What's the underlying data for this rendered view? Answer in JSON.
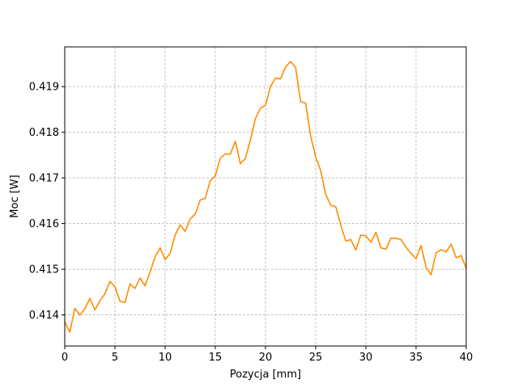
{
  "chart_data": {
    "type": "line",
    "title": "",
    "xlabel": "Pozycja [mm]",
    "ylabel": "Moc [W]",
    "xlim": [
      0,
      40
    ],
    "ylim": [
      0.41332,
      0.41987
    ],
    "xticks": [
      0,
      5,
      10,
      15,
      20,
      25,
      30,
      35,
      40
    ],
    "xtick_labels": [
      "0",
      "5",
      "10",
      "15",
      "20",
      "25",
      "30",
      "35",
      "40"
    ],
    "yticks": [
      0.414,
      0.415,
      0.416,
      0.417,
      0.418,
      0.419
    ],
    "ytick_labels": [
      "0.414",
      "0.415",
      "0.416",
      "0.417",
      "0.418",
      "0.419"
    ],
    "grid": true,
    "colors": {
      "line": "#ff8c00",
      "grid": "#b0b0b0"
    },
    "series": [
      {
        "x": [
          0,
          0.5,
          1,
          1.5,
          2,
          2.5,
          3,
          3.5,
          4,
          4.5,
          5,
          5.5,
          6,
          6.5,
          7,
          7.5,
          8,
          8.5,
          9,
          9.5,
          10,
          10.5,
          11,
          11.5,
          12,
          12.5,
          13,
          13.5,
          14,
          14.5,
          15,
          15.5,
          16,
          16.5,
          17,
          17.5,
          18,
          18.5,
          19,
          19.5,
          20,
          20.5,
          21,
          21.5,
          22,
          22.5,
          23,
          23.5,
          24,
          24.5,
          25,
          25.5,
          26,
          26.5,
          27,
          27.5,
          28,
          28.5,
          29,
          29.5,
          30,
          30.5,
          31,
          31.5,
          32,
          32.5,
          33,
          33.5,
          34,
          34.5,
          35,
          35.5,
          36,
          36.5,
          37,
          37.5,
          38,
          38.5,
          39,
          39.5,
          40
        ],
        "values": [
          0.41385,
          0.41362,
          0.41414,
          0.414,
          0.41413,
          0.41436,
          0.41411,
          0.41431,
          0.41446,
          0.41473,
          0.41462,
          0.4143,
          0.41427,
          0.41468,
          0.41458,
          0.41481,
          0.41464,
          0.41494,
          0.41527,
          0.41547,
          0.41521,
          0.41535,
          0.41575,
          0.41597,
          0.41583,
          0.4161,
          0.41621,
          0.41652,
          0.41655,
          0.41694,
          0.41705,
          0.41743,
          0.41753,
          0.41752,
          0.4178,
          0.41731,
          0.41743,
          0.41783,
          0.4183,
          0.41853,
          0.41859,
          0.419,
          0.41919,
          0.41917,
          0.41943,
          0.41955,
          0.41942,
          0.41867,
          0.41864,
          0.41792,
          0.41746,
          0.41716,
          0.41664,
          0.4164,
          0.41637,
          0.41597,
          0.41562,
          0.41565,
          0.41542,
          0.41575,
          0.41573,
          0.41559,
          0.41581,
          0.41547,
          0.41544,
          0.41568,
          0.41568,
          0.41565,
          0.41548,
          0.41535,
          0.41523,
          0.41552,
          0.41504,
          0.41488,
          0.41536,
          0.41543,
          0.41538,
          0.41555,
          0.41525,
          0.4153,
          0.41502
        ]
      }
    ]
  }
}
